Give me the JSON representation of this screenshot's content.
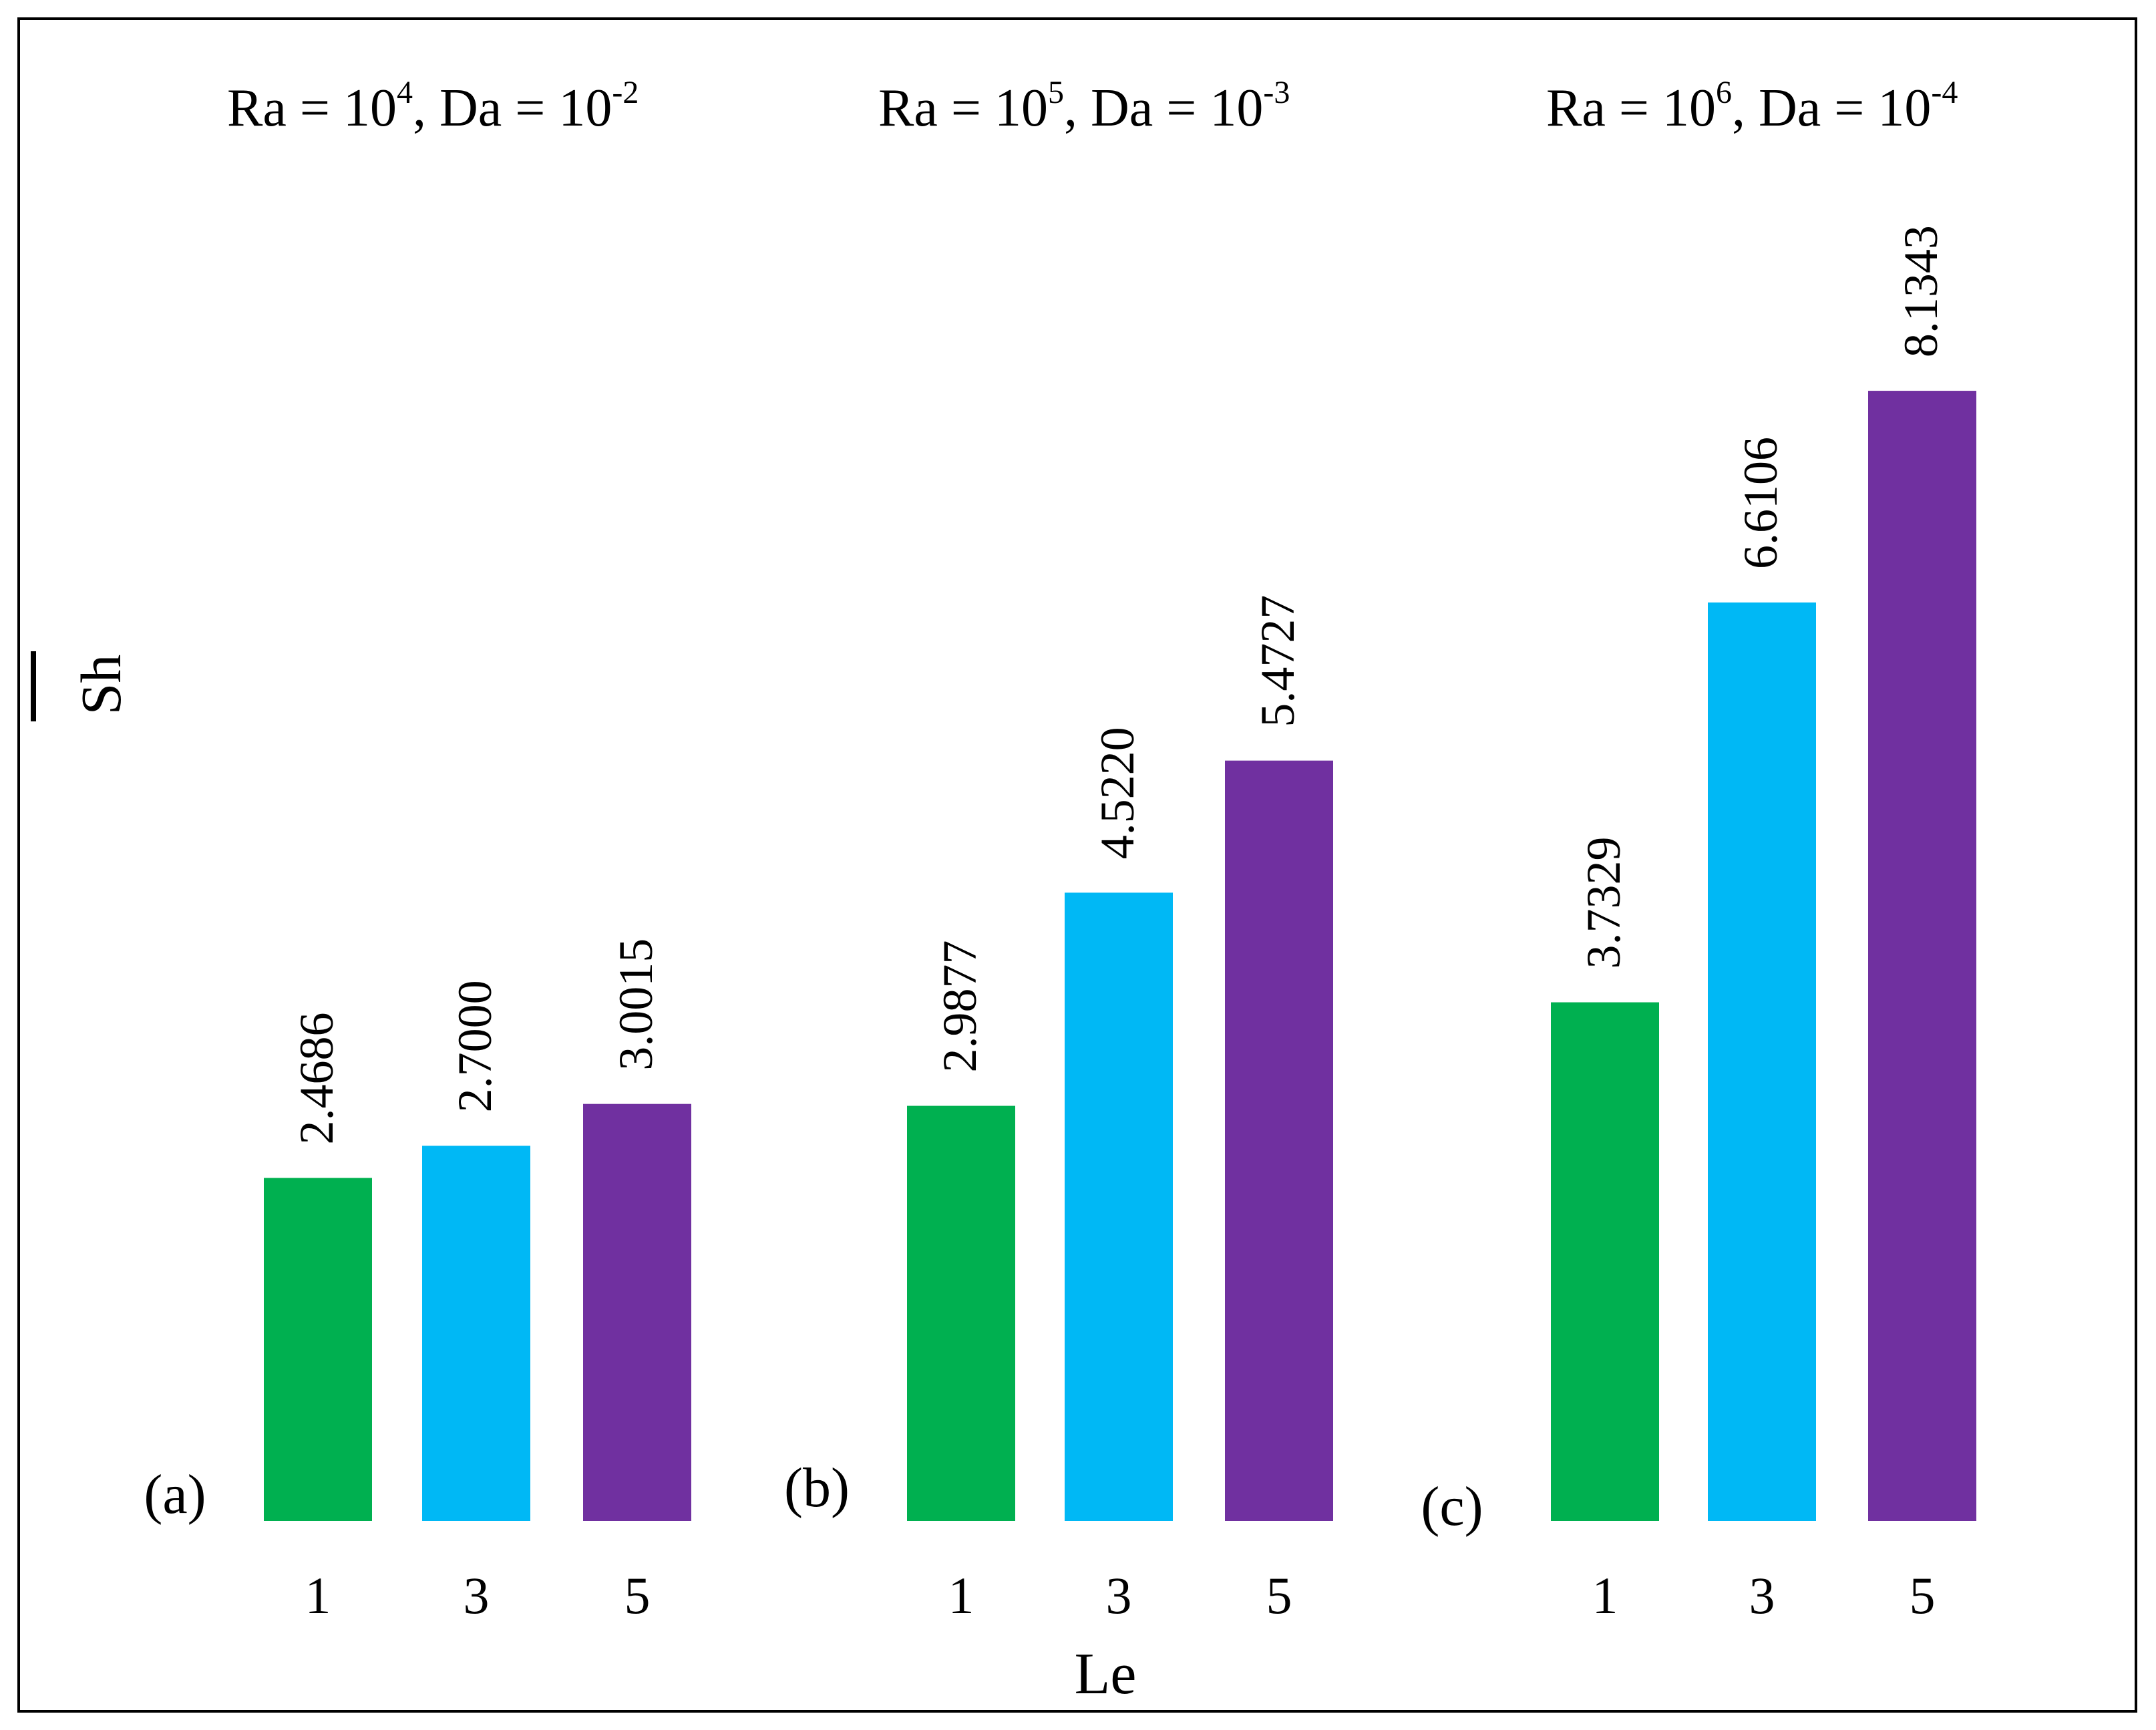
{
  "chart_data": {
    "type": "bar",
    "ylabel": "Sh",
    "xlabel": "Le",
    "categories": [
      "1",
      "3",
      "5"
    ],
    "colors": [
      "#00b050",
      "#00b8f5",
      "#7030a0"
    ],
    "panels": [
      {
        "label": "(a)",
        "title": {
          "ra_base": "Ra = 10",
          "ra_exp": "4",
          "da_base": ", Da = 10",
          "da_exp": "-2"
        },
        "values": [
          2.4686,
          2.7,
          3.0015
        ],
        "value_labels": [
          "2.4686",
          "2.7000",
          "3.0015"
        ]
      },
      {
        "label": "(b)",
        "title": {
          "ra_base": "Ra = 10",
          "ra_exp": "5",
          "da_base": ", Da = 10",
          "da_exp": "-3"
        },
        "values": [
          2.9877,
          4.522,
          5.4727
        ],
        "value_labels": [
          "2.9877",
          "4.5220",
          "5.4727"
        ]
      },
      {
        "label": "(c)",
        "title": {
          "ra_base": "Ra = 10",
          "ra_exp": "6",
          "da_base": ", Da = 10",
          "da_exp": "-4"
        },
        "values": [
          3.7329,
          6.6106,
          8.1343
        ],
        "value_labels": [
          "3.7329",
          "6.6106",
          "8.1343"
        ]
      }
    ]
  }
}
